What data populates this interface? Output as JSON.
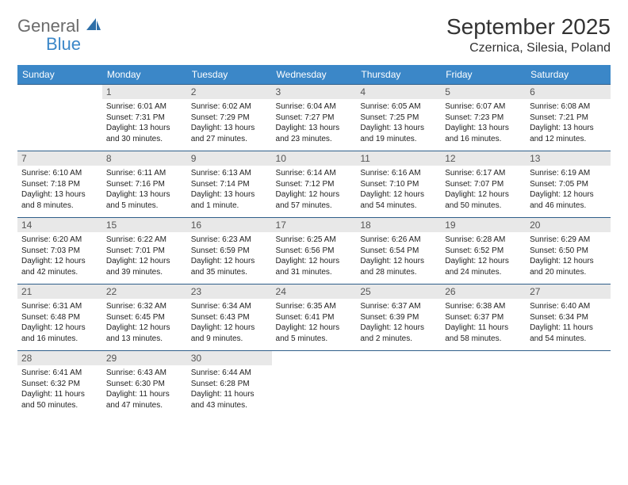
{
  "logo": {
    "general": "General",
    "blue": "Blue"
  },
  "title": {
    "month": "September 2025",
    "location": "Czernica, Silesia, Poland"
  },
  "colors": {
    "header_bg": "#3b87c8",
    "header_text": "#ffffff",
    "daynum_bg": "#e8e8e8",
    "border": "#2f5f8a",
    "text": "#222222"
  },
  "day_names": [
    "Sunday",
    "Monday",
    "Tuesday",
    "Wednesday",
    "Thursday",
    "Friday",
    "Saturday"
  ],
  "weeks": [
    [
      {
        "n": "",
        "empty": true
      },
      {
        "n": "1",
        "sr": "Sunrise: 6:01 AM",
        "ss": "Sunset: 7:31 PM",
        "dl": "Daylight: 13 hours and 30 minutes."
      },
      {
        "n": "2",
        "sr": "Sunrise: 6:02 AM",
        "ss": "Sunset: 7:29 PM",
        "dl": "Daylight: 13 hours and 27 minutes."
      },
      {
        "n": "3",
        "sr": "Sunrise: 6:04 AM",
        "ss": "Sunset: 7:27 PM",
        "dl": "Daylight: 13 hours and 23 minutes."
      },
      {
        "n": "4",
        "sr": "Sunrise: 6:05 AM",
        "ss": "Sunset: 7:25 PM",
        "dl": "Daylight: 13 hours and 19 minutes."
      },
      {
        "n": "5",
        "sr": "Sunrise: 6:07 AM",
        "ss": "Sunset: 7:23 PM",
        "dl": "Daylight: 13 hours and 16 minutes."
      },
      {
        "n": "6",
        "sr": "Sunrise: 6:08 AM",
        "ss": "Sunset: 7:21 PM",
        "dl": "Daylight: 13 hours and 12 minutes."
      }
    ],
    [
      {
        "n": "7",
        "sr": "Sunrise: 6:10 AM",
        "ss": "Sunset: 7:18 PM",
        "dl": "Daylight: 13 hours and 8 minutes."
      },
      {
        "n": "8",
        "sr": "Sunrise: 6:11 AM",
        "ss": "Sunset: 7:16 PM",
        "dl": "Daylight: 13 hours and 5 minutes."
      },
      {
        "n": "9",
        "sr": "Sunrise: 6:13 AM",
        "ss": "Sunset: 7:14 PM",
        "dl": "Daylight: 13 hours and 1 minute."
      },
      {
        "n": "10",
        "sr": "Sunrise: 6:14 AM",
        "ss": "Sunset: 7:12 PM",
        "dl": "Daylight: 12 hours and 57 minutes."
      },
      {
        "n": "11",
        "sr": "Sunrise: 6:16 AM",
        "ss": "Sunset: 7:10 PM",
        "dl": "Daylight: 12 hours and 54 minutes."
      },
      {
        "n": "12",
        "sr": "Sunrise: 6:17 AM",
        "ss": "Sunset: 7:07 PM",
        "dl": "Daylight: 12 hours and 50 minutes."
      },
      {
        "n": "13",
        "sr": "Sunrise: 6:19 AM",
        "ss": "Sunset: 7:05 PM",
        "dl": "Daylight: 12 hours and 46 minutes."
      }
    ],
    [
      {
        "n": "14",
        "sr": "Sunrise: 6:20 AM",
        "ss": "Sunset: 7:03 PM",
        "dl": "Daylight: 12 hours and 42 minutes."
      },
      {
        "n": "15",
        "sr": "Sunrise: 6:22 AM",
        "ss": "Sunset: 7:01 PM",
        "dl": "Daylight: 12 hours and 39 minutes."
      },
      {
        "n": "16",
        "sr": "Sunrise: 6:23 AM",
        "ss": "Sunset: 6:59 PM",
        "dl": "Daylight: 12 hours and 35 minutes."
      },
      {
        "n": "17",
        "sr": "Sunrise: 6:25 AM",
        "ss": "Sunset: 6:56 PM",
        "dl": "Daylight: 12 hours and 31 minutes."
      },
      {
        "n": "18",
        "sr": "Sunrise: 6:26 AM",
        "ss": "Sunset: 6:54 PM",
        "dl": "Daylight: 12 hours and 28 minutes."
      },
      {
        "n": "19",
        "sr": "Sunrise: 6:28 AM",
        "ss": "Sunset: 6:52 PM",
        "dl": "Daylight: 12 hours and 24 minutes."
      },
      {
        "n": "20",
        "sr": "Sunrise: 6:29 AM",
        "ss": "Sunset: 6:50 PM",
        "dl": "Daylight: 12 hours and 20 minutes."
      }
    ],
    [
      {
        "n": "21",
        "sr": "Sunrise: 6:31 AM",
        "ss": "Sunset: 6:48 PM",
        "dl": "Daylight: 12 hours and 16 minutes."
      },
      {
        "n": "22",
        "sr": "Sunrise: 6:32 AM",
        "ss": "Sunset: 6:45 PM",
        "dl": "Daylight: 12 hours and 13 minutes."
      },
      {
        "n": "23",
        "sr": "Sunrise: 6:34 AM",
        "ss": "Sunset: 6:43 PM",
        "dl": "Daylight: 12 hours and 9 minutes."
      },
      {
        "n": "24",
        "sr": "Sunrise: 6:35 AM",
        "ss": "Sunset: 6:41 PM",
        "dl": "Daylight: 12 hours and 5 minutes."
      },
      {
        "n": "25",
        "sr": "Sunrise: 6:37 AM",
        "ss": "Sunset: 6:39 PM",
        "dl": "Daylight: 12 hours and 2 minutes."
      },
      {
        "n": "26",
        "sr": "Sunrise: 6:38 AM",
        "ss": "Sunset: 6:37 PM",
        "dl": "Daylight: 11 hours and 58 minutes."
      },
      {
        "n": "27",
        "sr": "Sunrise: 6:40 AM",
        "ss": "Sunset: 6:34 PM",
        "dl": "Daylight: 11 hours and 54 minutes."
      }
    ],
    [
      {
        "n": "28",
        "sr": "Sunrise: 6:41 AM",
        "ss": "Sunset: 6:32 PM",
        "dl": "Daylight: 11 hours and 50 minutes."
      },
      {
        "n": "29",
        "sr": "Sunrise: 6:43 AM",
        "ss": "Sunset: 6:30 PM",
        "dl": "Daylight: 11 hours and 47 minutes."
      },
      {
        "n": "30",
        "sr": "Sunrise: 6:44 AM",
        "ss": "Sunset: 6:28 PM",
        "dl": "Daylight: 11 hours and 43 minutes."
      },
      {
        "n": "",
        "empty": true
      },
      {
        "n": "",
        "empty": true
      },
      {
        "n": "",
        "empty": true
      },
      {
        "n": "",
        "empty": true
      }
    ]
  ]
}
